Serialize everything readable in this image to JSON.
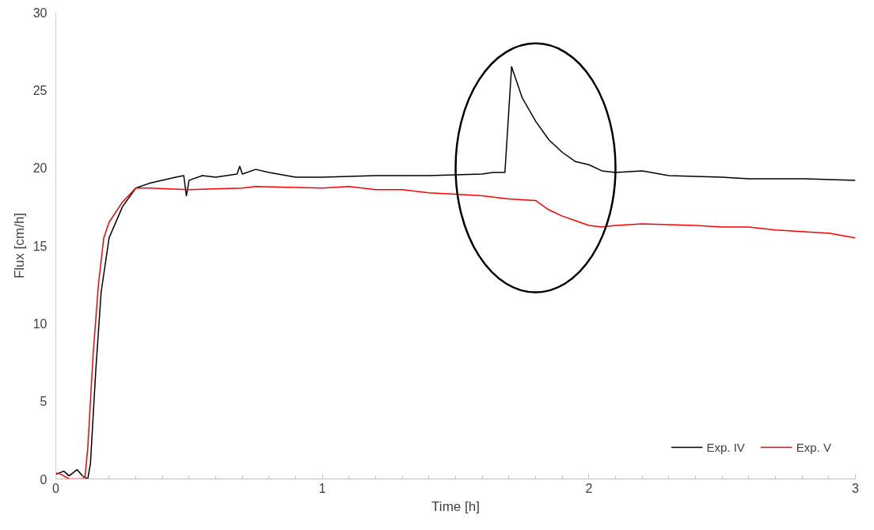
{
  "chart_data": {
    "type": "line",
    "xlabel": "Time [h]",
    "ylabel": "Flux [cm/h]",
    "xlim": [
      0,
      3
    ],
    "xticks": [
      0,
      1,
      2,
      3
    ],
    "ylim": [
      0,
      30
    ],
    "yticks": [
      0,
      5,
      10,
      15,
      20,
      25,
      30
    ],
    "grid": false,
    "legend": "bottom right",
    "marker": "none",
    "line_style": "solid",
    "series": [
      {
        "name": "Exp. IV",
        "color": "#000000",
        "x": [
          0,
          0.03,
          0.05,
          0.08,
          0.1,
          0.12,
          0.13,
          0.15,
          0.17,
          0.2,
          0.25,
          0.3,
          0.35,
          0.45,
          0.48,
          0.49,
          0.5,
          0.55,
          0.6,
          0.68,
          0.69,
          0.7,
          0.75,
          0.8,
          0.9,
          1.0,
          1.2,
          1.4,
          1.6,
          1.64,
          1.685,
          1.71,
          1.75,
          1.8,
          1.85,
          1.9,
          1.95,
          2.0,
          2.05,
          2.1,
          2.2,
          2.3,
          2.5,
          2.6,
          2.8,
          3.0
        ],
        "values": [
          0.3,
          0.5,
          0.2,
          0.6,
          0.2,
          0,
          1,
          7,
          12,
          15.5,
          17.5,
          18.7,
          19,
          19.4,
          19.5,
          18.2,
          19.2,
          19.5,
          19.4,
          19.6,
          20.1,
          19.6,
          19.9,
          19.7,
          19.4,
          19.4,
          19.5,
          19.5,
          19.6,
          19.7,
          19.7,
          26.5,
          24.5,
          23,
          21.8,
          21,
          20.4,
          20.2,
          19.8,
          19.7,
          19.8,
          19.5,
          19.4,
          19.3,
          19.3,
          19.2
        ]
      },
      {
        "name": "Exp. V",
        "color": "#ff0000",
        "x": [
          0,
          0.02,
          0.05,
          0.1,
          0.11,
          0.12,
          0.14,
          0.16,
          0.18,
          0.2,
          0.25,
          0.3,
          0.35,
          0.5,
          0.7,
          0.75,
          1.0,
          1.1,
          1.2,
          1.3,
          1.4,
          1.5,
          1.6,
          1.7,
          1.8,
          1.85,
          1.9,
          1.95,
          2.0,
          2.05,
          2.1,
          2.2,
          2.4,
          2.5,
          2.6,
          2.7,
          2.8,
          2.9,
          3.0
        ],
        "values": [
          0.4,
          0.3,
          0,
          0,
          0.2,
          2,
          8,
          12.5,
          15.5,
          16.5,
          17.8,
          18.7,
          18.7,
          18.6,
          18.7,
          18.8,
          18.7,
          18.8,
          18.6,
          18.6,
          18.4,
          18.3,
          18.2,
          18.0,
          17.9,
          17.3,
          16.9,
          16.6,
          16.3,
          16.2,
          16.3,
          16.4,
          16.3,
          16.2,
          16.2,
          16.0,
          15.9,
          15.8,
          15.5
        ]
      }
    ]
  }
}
